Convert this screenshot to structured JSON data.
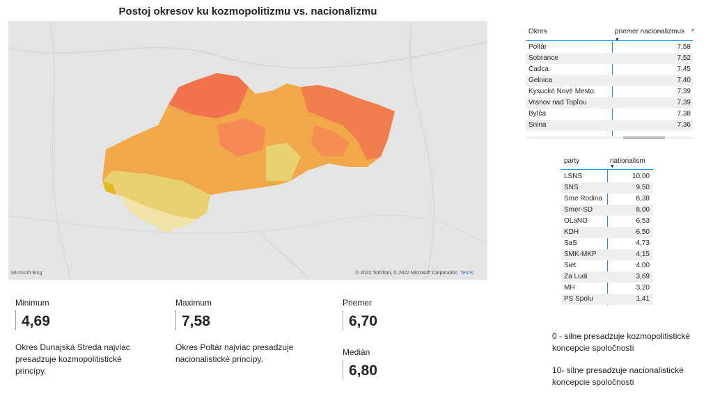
{
  "title": "Postoj okresov ku kozmopolitizmu vs. nacionalizmu",
  "map": {
    "logo": "Microsoft Bing",
    "copyright": "© 2022 TomTom, © 2022 Microsoft Corporation",
    "terms": "Terms"
  },
  "okres_table": {
    "col1": "Okres",
    "col2": "priemer nacionalizmus",
    "rows": [
      {
        "name": "Poltár",
        "value": "7,58"
      },
      {
        "name": "Sobrance",
        "value": "7,52"
      },
      {
        "name": "Čadca",
        "value": "7,45"
      },
      {
        "name": "Gelnica",
        "value": "7,40"
      },
      {
        "name": "Kysucké Nové Mesto",
        "value": "7,39"
      },
      {
        "name": "Vranov nad Topľou",
        "value": "7,39"
      },
      {
        "name": "Bytča",
        "value": "7,38"
      },
      {
        "name": "Snina",
        "value": "7,36"
      }
    ]
  },
  "party_table": {
    "col1": "party",
    "col2": "nationalism",
    "rows": [
      {
        "name": "LSNS",
        "value": "10,00"
      },
      {
        "name": "SNS",
        "value": "9,50"
      },
      {
        "name": "Sme Rodina",
        "value": "8,38"
      },
      {
        "name": "Smer-SD",
        "value": "8,00"
      },
      {
        "name": "OLaNO",
        "value": "6,53"
      },
      {
        "name": "KDH",
        "value": "6,50"
      },
      {
        "name": "SaS",
        "value": "4,73"
      },
      {
        "name": "SMK-MKP",
        "value": "4,15"
      },
      {
        "name": "Siet",
        "value": "4,00"
      },
      {
        "name": "Za Ludi",
        "value": "3,69"
      },
      {
        "name": "MH",
        "value": "3,20"
      },
      {
        "name": "PS Spolu",
        "value": "1,41"
      }
    ]
  },
  "kpis": {
    "minimum": {
      "label": "Minimum",
      "value": "4,69",
      "note": "Okres Dunajská Streda najviac presadzuje kozmopolitistické princípy."
    },
    "maximum": {
      "label": "Maximum",
      "value": "7,58",
      "note": "Okres Poltár najviac presadzuje nacionalistické princípy."
    },
    "priemer": {
      "label": "Priemer",
      "value": "6,70"
    },
    "median": {
      "label": "Medián",
      "value": "6,80"
    }
  },
  "legend": {
    "low": "0 - silne presadzuje kozmopolitistické koncepcie spoločnosti",
    "high": "10- silne presadzuje nacionalistické koncepcie spoločnosti"
  },
  "colors": {
    "accent": "#118dff",
    "map_high": "#f26d4f",
    "map_mid": "#f0a848",
    "map_low": "#e8d070",
    "map_lowest": "#f1e4a8"
  }
}
